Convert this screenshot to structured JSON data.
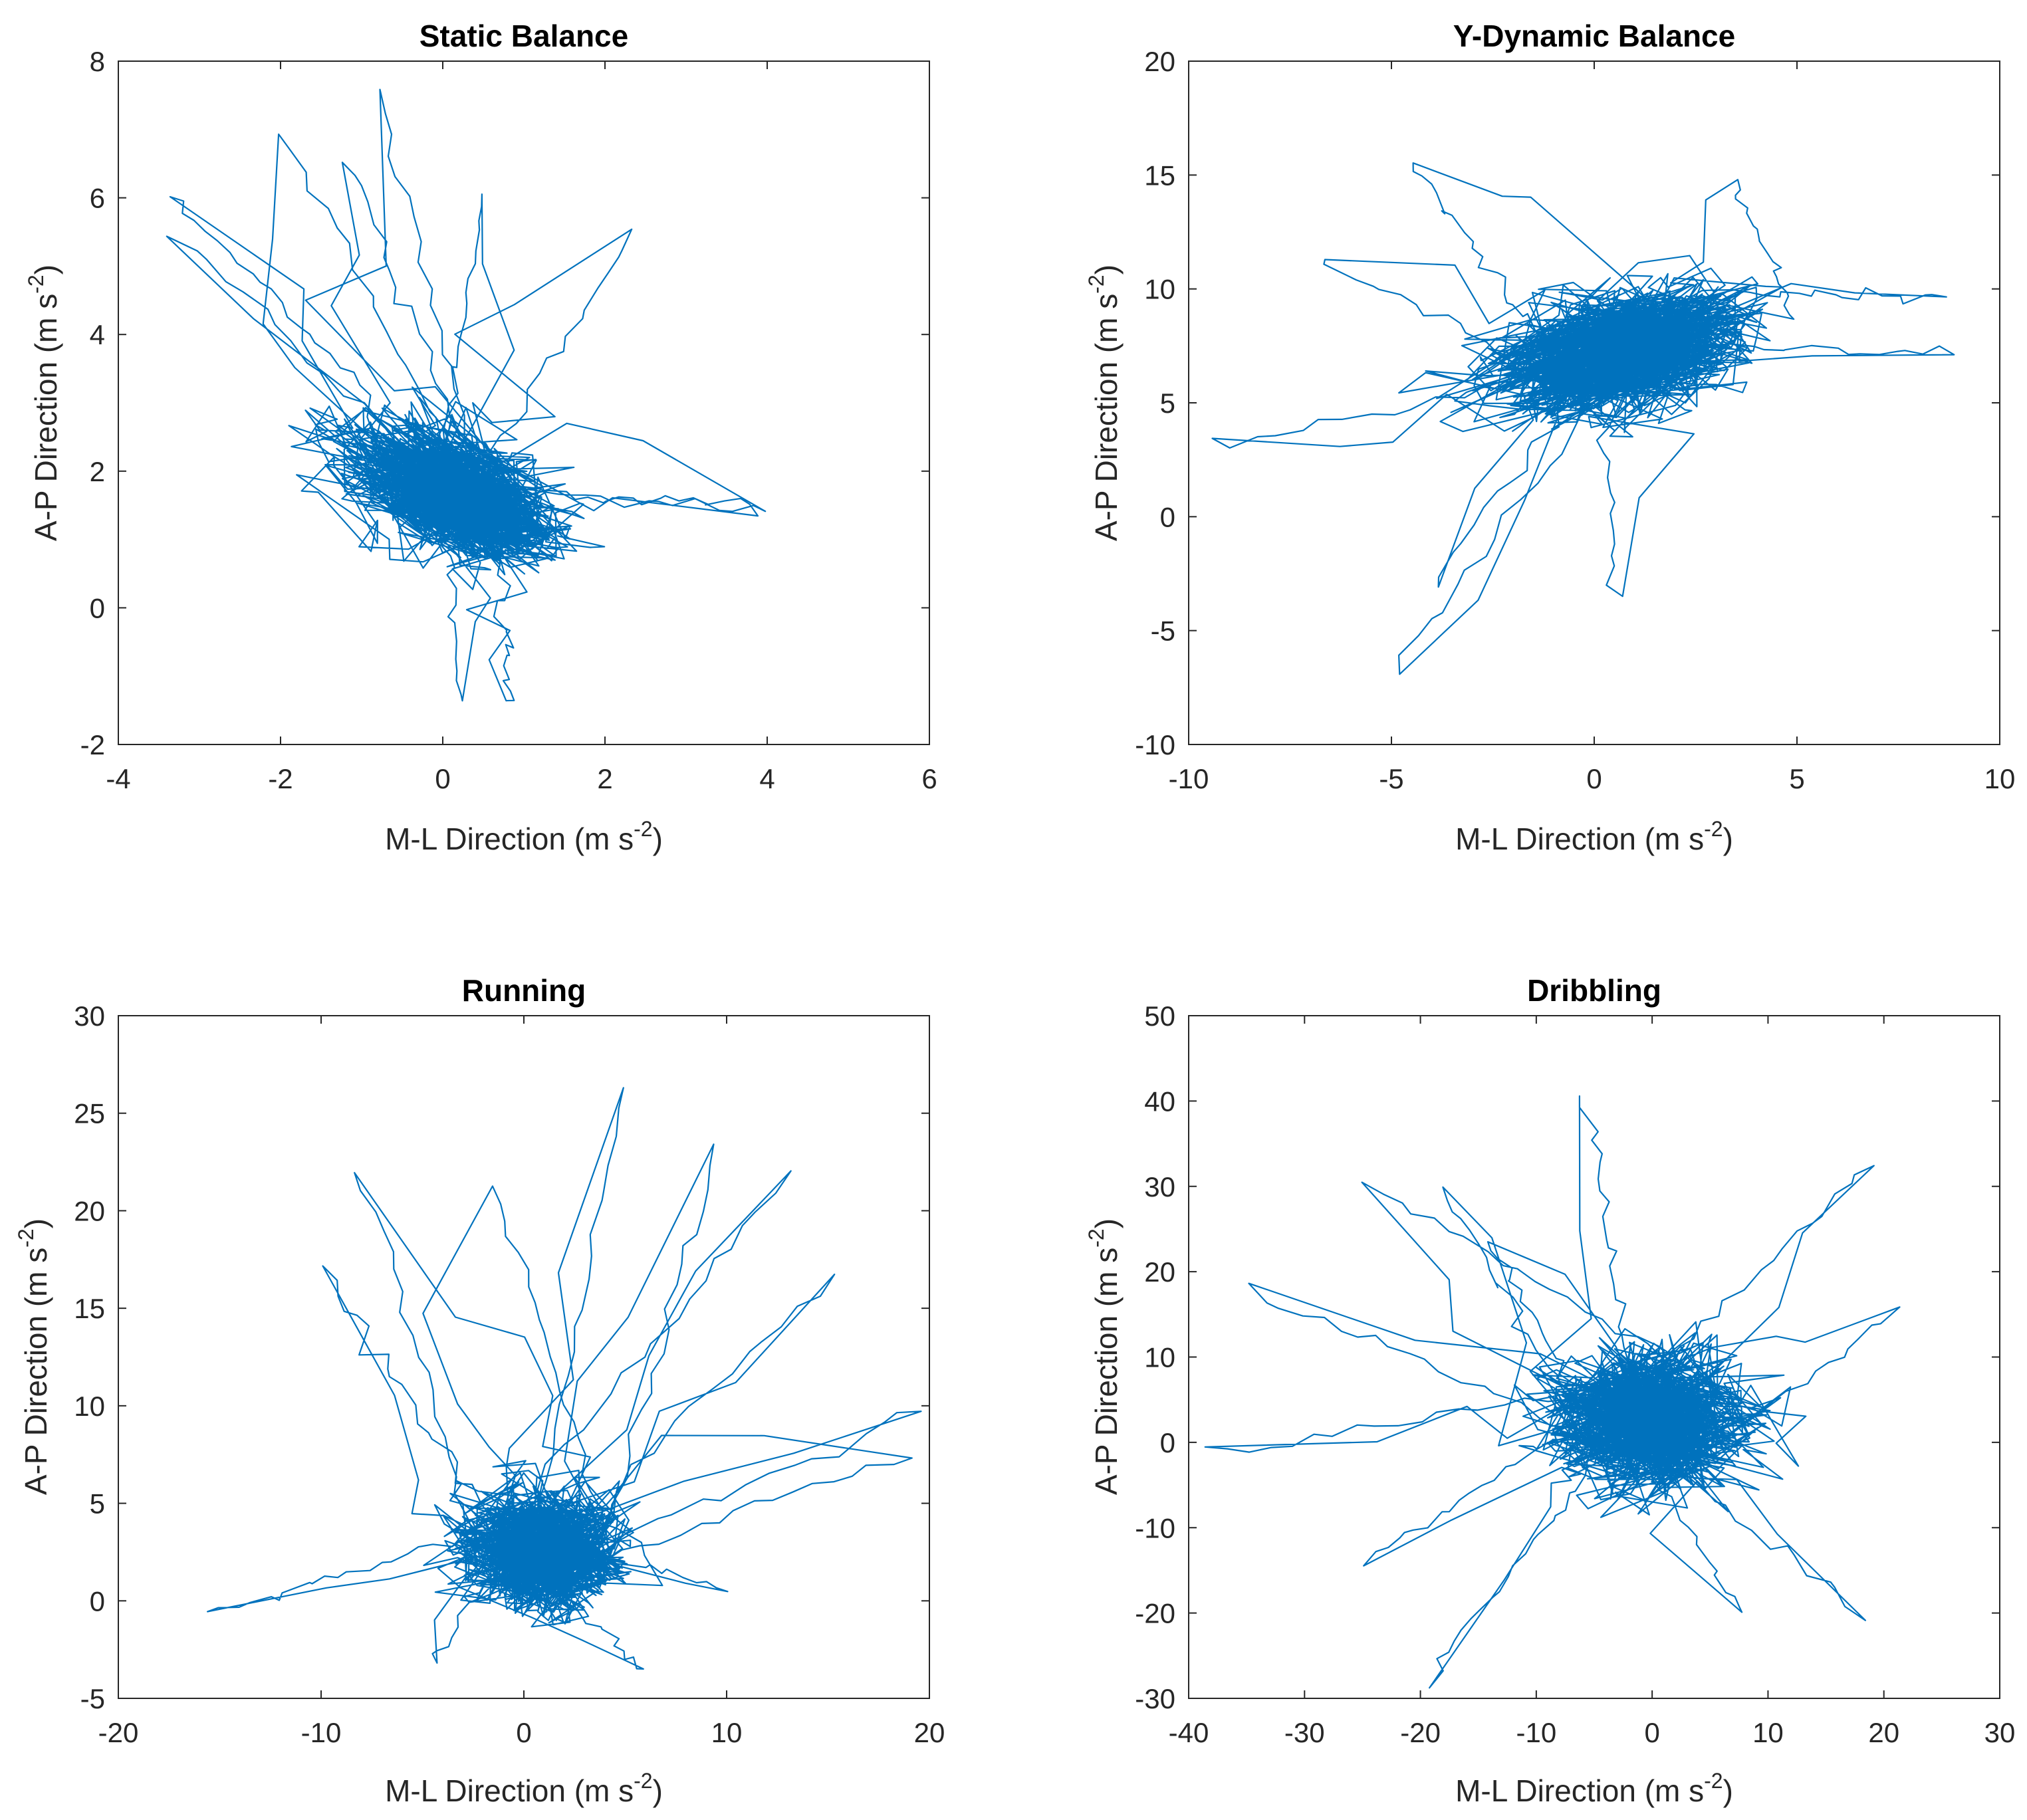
{
  "figure": {
    "line_color": "#0072bd",
    "axis_color": "#262626",
    "background": "#ffffff"
  },
  "chart_data": [
    {
      "type": "line",
      "title": "Static Balance",
      "xlabel": "M-L Direction  (m s",
      "ylabel": "A-P Direction  (m s",
      "unit_exponent": "-2",
      "xlim": [
        -4,
        6
      ],
      "ylim": [
        -2,
        8
      ],
      "xticks": [
        "-4",
        "-2",
        "0",
        "2",
        "4",
        "6"
      ],
      "yticks": [
        "-2",
        "0",
        "2",
        "4",
        "6",
        "8"
      ],
      "trace": {
        "description": "dense cloud of acceleration trajectory",
        "cluster_centers": [
          [
            -1.0,
            2.7
          ],
          [
            0.3,
            1.4
          ],
          [
            1.2,
            0.8
          ]
        ],
        "cluster_spread": [
          [
            0.9,
            0.7
          ],
          [
            0.9,
            0.6
          ],
          [
            0.8,
            0.5
          ]
        ],
        "tail_points": [
          [
            -2.0,
            7.0
          ],
          [
            -1.2,
            6.6
          ],
          [
            -0.8,
            7.6
          ],
          [
            0.5,
            6.0
          ],
          [
            2.4,
            5.5
          ],
          [
            -3.3,
            5.5
          ],
          [
            -3.4,
            6.1
          ],
          [
            3.9,
            1.5
          ],
          [
            4.0,
            1.4
          ],
          [
            0.8,
            -1.4
          ],
          [
            0.2,
            -1.4
          ]
        ],
        "x_extent": [
          -3.5,
          4.1
        ],
        "y_extent": [
          -1.5,
          7.6
        ]
      }
    },
    {
      "type": "line",
      "title": "Y-Dynamic Balance",
      "xlabel": "M-L Direction  (m s",
      "ylabel": "A-P Direction  (m s",
      "unit_exponent": "-2",
      "xlim": [
        -10,
        10
      ],
      "ylim": [
        -10,
        20
      ],
      "xticks": [
        "-10",
        "-5",
        "0",
        "5",
        "10"
      ],
      "yticks": [
        "-10",
        "-5",
        "0",
        "5",
        "10",
        "15",
        "20"
      ],
      "trace": {
        "description": "looping acceleration trajectory",
        "cluster_centers": [
          [
            -1.0,
            5.0
          ],
          [
            2.0,
            9.5
          ]
        ],
        "cluster_spread": [
          [
            2.6,
            2.0
          ],
          [
            2.2,
            1.8
          ]
        ],
        "tail_points": [
          [
            -4.5,
            15.6
          ],
          [
            3.5,
            14.7
          ],
          [
            8.6,
            9.6
          ],
          [
            9.0,
            7.2
          ],
          [
            -9.6,
            3.1
          ],
          [
            -6.8,
            11.4
          ],
          [
            -5.0,
            -6.8
          ],
          [
            0.5,
            -3.4
          ],
          [
            -4.0,
            -3.0
          ]
        ],
        "x_extent": [
          -9.7,
          9.0
        ],
        "y_extent": [
          -6.8,
          15.7
        ]
      }
    },
    {
      "type": "line",
      "title": "Running",
      "xlabel": "M-L Direction  (m s",
      "ylabel": "A-P Direction  (m s",
      "unit_exponent": "-2",
      "xlim": [
        -20,
        20
      ],
      "ylim": [
        -5,
        30
      ],
      "xticks": [
        "-20",
        "-10",
        "0",
        "10",
        "20"
      ],
      "yticks": [
        "-5",
        "0",
        "5",
        "10",
        "15",
        "20",
        "25",
        "30"
      ],
      "trace": {
        "description": "wide looping running trajectory",
        "cluster_centers": [
          [
            1.0,
            2.5
          ]
        ],
        "cluster_spread": [
          [
            3.5,
            2.8
          ]
        ],
        "tail_points": [
          [
            -15.5,
            -0.7
          ],
          [
            -10.0,
            17.0
          ],
          [
            -8.0,
            22.0
          ],
          [
            5.0,
            26.4
          ],
          [
            13.0,
            22.0
          ],
          [
            9.5,
            23.3
          ],
          [
            -1.5,
            21.4
          ],
          [
            15.0,
            16.7
          ],
          [
            19.8,
            10.0
          ],
          [
            19.0,
            7.5
          ],
          [
            10.0,
            0.5
          ],
          [
            -4.5,
            -3.4
          ],
          [
            6.0,
            -3.8
          ]
        ],
        "x_extent": [
          -15.5,
          19.8
        ],
        "y_extent": [
          -3.8,
          26.4
        ]
      }
    },
    {
      "type": "line",
      "title": "Dribbling",
      "xlabel": "M-L Direction  (m s",
      "ylabel": "A-P Direction  (m s",
      "unit_exponent": "-2",
      "xlim": [
        -40,
        30
      ],
      "ylim": [
        -30,
        50
      ],
      "xticks": [
        "-40",
        "-30",
        "-20",
        "-10",
        "0",
        "10",
        "20",
        "30"
      ],
      "yticks": [
        "-30",
        "-20",
        "-10",
        "0",
        "10",
        "20",
        "30",
        "40",
        "50"
      ],
      "trace": {
        "description": "dense dribbling trajectory",
        "cluster_centers": [
          [
            0.0,
            3.0
          ]
        ],
        "cluster_spread": [
          [
            7.5,
            7.5
          ]
        ],
        "tail_points": [
          [
            -38.5,
            -1.5
          ],
          [
            -35.0,
            18.0
          ],
          [
            -25.0,
            30.5
          ],
          [
            -18.0,
            30.0
          ],
          [
            -6.0,
            40.0
          ],
          [
            19.0,
            33.0
          ],
          [
            21.0,
            15.0
          ],
          [
            18.5,
            -20.5
          ],
          [
            8.0,
            -20.5
          ],
          [
            -19.5,
            -28.0
          ],
          [
            -25.0,
            -14.0
          ],
          [
            -14.0,
            24.0
          ]
        ],
        "x_extent": [
          -38.5,
          21.0
        ],
        "y_extent": [
          -28.5,
          40.5
        ]
      }
    }
  ]
}
